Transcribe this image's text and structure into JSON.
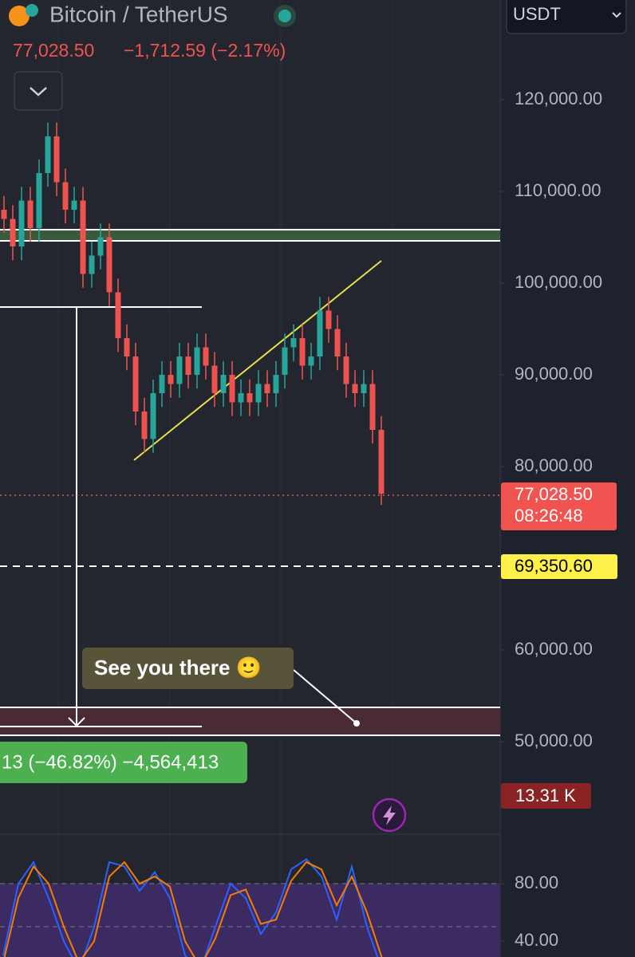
{
  "header": {
    "symbol": "Bitcoin / TetherUS",
    "price": "77,028.50",
    "change": "−1,712.59 (−2.17%)",
    "currency": "USDT"
  },
  "chart_data": {
    "type": "candlestick",
    "ylim": [
      40000,
      130870
    ],
    "yticks": [
      {
        "value": 120000,
        "label": "120,000.00"
      },
      {
        "value": 110000,
        "label": "110,000.00"
      },
      {
        "value": 100000,
        "label": "100,000.00"
      },
      {
        "value": 90000,
        "label": "90,000.00"
      },
      {
        "value": 80000,
        "label": "80,000.00"
      },
      {
        "value": 60000,
        "label": "60,000.00"
      },
      {
        "value": 50000,
        "label": "50,000.00"
      }
    ],
    "up_color": "#26a69a",
    "down_color": "#ef5350",
    "open": [
      108000,
      107000,
      104000,
      109000,
      106000,
      112000,
      116000,
      111000,
      108000,
      109000,
      101000,
      103000,
      105000,
      99000,
      94000,
      92000,
      86000,
      83000,
      88000,
      90000,
      89000,
      92000,
      90000,
      93000,
      91000,
      88000,
      90000,
      87000,
      88000,
      87000,
      89000,
      88000,
      90000,
      93000,
      94000,
      91000,
      92000,
      97000,
      95000,
      92000,
      89000,
      88000,
      89000,
      84000
    ],
    "high": [
      109500,
      108500,
      110500,
      110500,
      113500,
      117500,
      117500,
      112500,
      110500,
      110500,
      104500,
      106500,
      106500,
      100500,
      95500,
      93500,
      87500,
      89500,
      91500,
      91500,
      93500,
      93500,
      94500,
      94500,
      92500,
      91500,
      91500,
      89500,
      89500,
      90500,
      90500,
      91500,
      94500,
      95500,
      95500,
      93500,
      98500,
      98500,
      96500,
      93500,
      90500,
      90500,
      90500,
      85500
    ],
    "low": [
      105500,
      102500,
      102500,
      104500,
      104500,
      110500,
      109500,
      106500,
      106500,
      99500,
      99500,
      101500,
      97500,
      92500,
      90500,
      84500,
      81500,
      81500,
      86500,
      87500,
      87500,
      88500,
      88500,
      89500,
      86500,
      86500,
      85500,
      85500,
      85500,
      85500,
      86500,
      86500,
      88500,
      91500,
      89500,
      89500,
      90500,
      93500,
      90500,
      87500,
      86500,
      86500,
      82500,
      75800
    ],
    "close": [
      107000,
      104000,
      109000,
      106000,
      112000,
      116000,
      111000,
      108000,
      109000,
      101000,
      103000,
      105000,
      99000,
      94000,
      92000,
      86000,
      83000,
      88000,
      90000,
      89000,
      92000,
      90000,
      93000,
      91000,
      88000,
      90000,
      87000,
      88000,
      87000,
      89000,
      88000,
      90000,
      93000,
      94000,
      91000,
      92000,
      97000,
      95000,
      92000,
      89000,
      88000,
      89000,
      84000,
      77028.5
    ],
    "last_price": {
      "value": 77028.5,
      "label": "77,028.50"
    },
    "countdown": "08:26:48",
    "target": {
      "value": 69350.6,
      "label": "69,350.60"
    },
    "annotation": "See you there 🙂",
    "measure_label": "13 (−46.82%) −4,564,413",
    "volume_label": "13.31 K",
    "oscillator": {
      "ylim": [
        29,
        115
      ],
      "yticks": [
        {
          "value": 80,
          "label": "80.00"
        },
        {
          "value": 40,
          "label": "40.00"
        }
      ],
      "series": [
        {
          "color": "#2962ff",
          "values": [
            30,
            80,
            95,
            70,
            40,
            20,
            50,
            95,
            92,
            75,
            88,
            70,
            30,
            20,
            50,
            80,
            70,
            45,
            60,
            90,
            97,
            85,
            55,
            92,
            50,
            20
          ]
        },
        {
          "color": "#f57c00",
          "values": [
            25,
            70,
            92,
            80,
            50,
            25,
            40,
            85,
            95,
            80,
            85,
            78,
            40,
            22,
            42,
            72,
            76,
            52,
            55,
            82,
            95,
            90,
            65,
            85,
            60,
            28
          ]
        }
      ]
    }
  }
}
